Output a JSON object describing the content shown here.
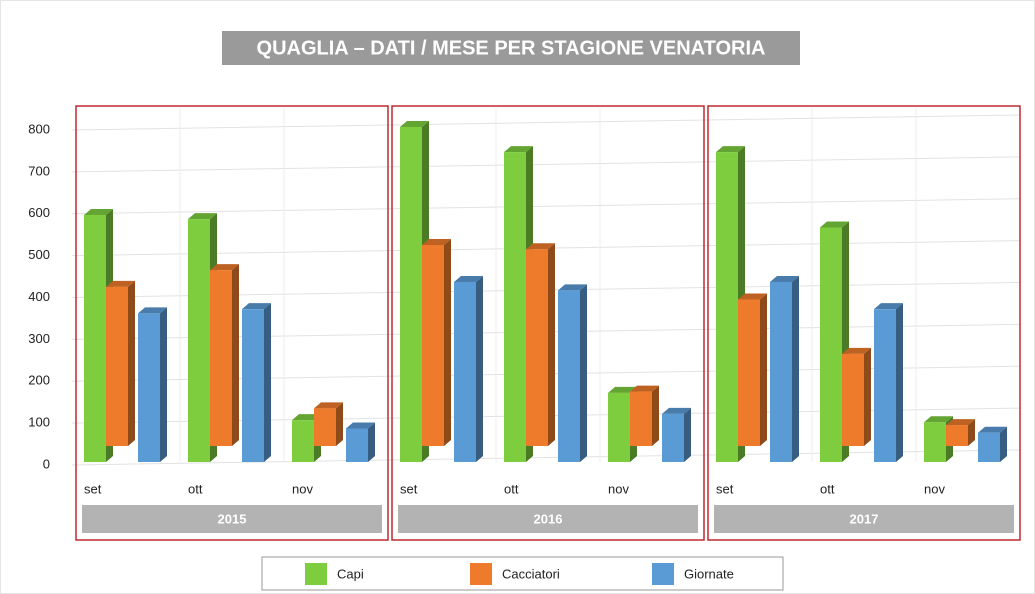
{
  "chart_data": {
    "type": "bar",
    "title": "QUAGLIA – DATI / MESE PER STAGIONE VENATORIA",
    "groups": [
      "2015",
      "2016",
      "2017"
    ],
    "categories": [
      "set",
      "ott",
      "nov",
      "set",
      "ott",
      "nov",
      "set",
      "ott",
      "nov"
    ],
    "series": [
      {
        "name": "Capi",
        "color": "#7dcd3e",
        "values": [
          590,
          580,
          100,
          800,
          740,
          165,
          740,
          560,
          95
        ]
      },
      {
        "name": "Cacciatori",
        "color": "#ee7b2c",
        "values": [
          380,
          420,
          90,
          480,
          470,
          130,
          350,
          220,
          50
        ]
      },
      {
        "name": "Giornate",
        "color": "#5b9bd5",
        "values": [
          355,
          365,
          80,
          430,
          410,
          115,
          430,
          365,
          70
        ]
      }
    ],
    "ylim": [
      0,
      800
    ],
    "yticks": [
      0,
      100,
      200,
      300,
      400,
      500,
      600,
      700,
      800
    ],
    "grid": true,
    "legend": "bottom"
  }
}
